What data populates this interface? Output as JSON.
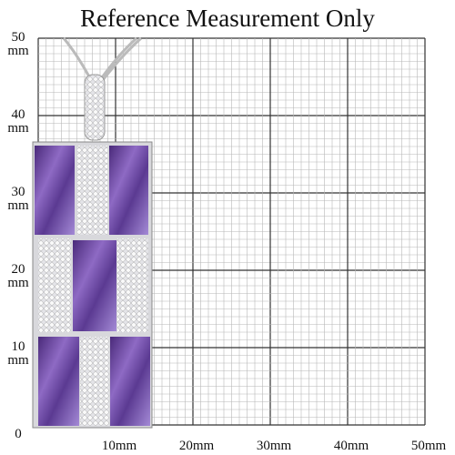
{
  "header": {
    "title": "Reference Measurement Only"
  },
  "y_labels": [
    {
      "number": "50",
      "unit": "mm"
    },
    {
      "number": "40",
      "unit": "mm"
    },
    {
      "number": "30",
      "unit": "mm"
    },
    {
      "number": "20",
      "unit": "mm"
    },
    {
      "number": "10",
      "unit": "mm"
    },
    {
      "number": "0"
    }
  ],
  "x_labels": [
    "10mm",
    "20mm",
    "30mm",
    "40mm",
    "50mm"
  ]
}
